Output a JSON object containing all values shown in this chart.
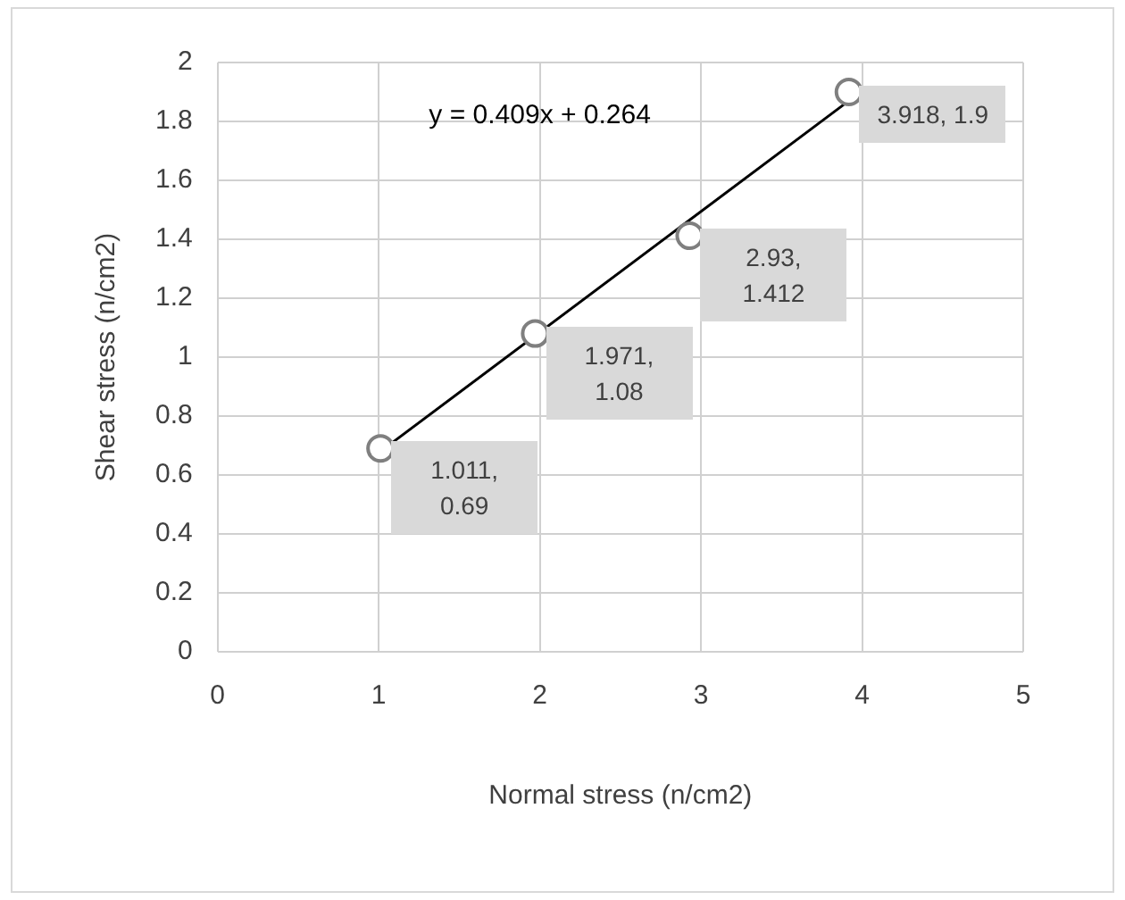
{
  "chart_data": {
    "type": "scatter",
    "xlabel": "Normal stress (n/cm2)",
    "ylabel": "Shear stress (n/cm2)",
    "x": [
      1.011,
      1.971,
      2.93,
      3.918
    ],
    "series": [
      {
        "marker": "circle",
        "color": "#7f7f7f",
        "values": [
          0.69,
          1.08,
          1.412,
          1.9
        ],
        "value_labels": [
          "1.011, 0.69",
          "1.971, 1.08",
          "2.93, 1.412",
          "3.918, 1.9"
        ]
      },
      {
        "type": "line",
        "marker": "none",
        "color": "#000000",
        "x": [
          1.011,
          3.918
        ],
        "values": [
          0.68,
          1.87
        ]
      }
    ],
    "annotations": [
      "y = 0.409x + 0.264"
    ],
    "xlim": [
      0,
      5
    ],
    "xticks": [
      0,
      1,
      2,
      3,
      4,
      5
    ],
    "ylim": [
      0,
      2
    ],
    "yticks": [
      0,
      0.2,
      0.4,
      0.6,
      0.8,
      1,
      1.2,
      1.4,
      1.6,
      1.8,
      2
    ],
    "grid": true,
    "legend": false
  }
}
